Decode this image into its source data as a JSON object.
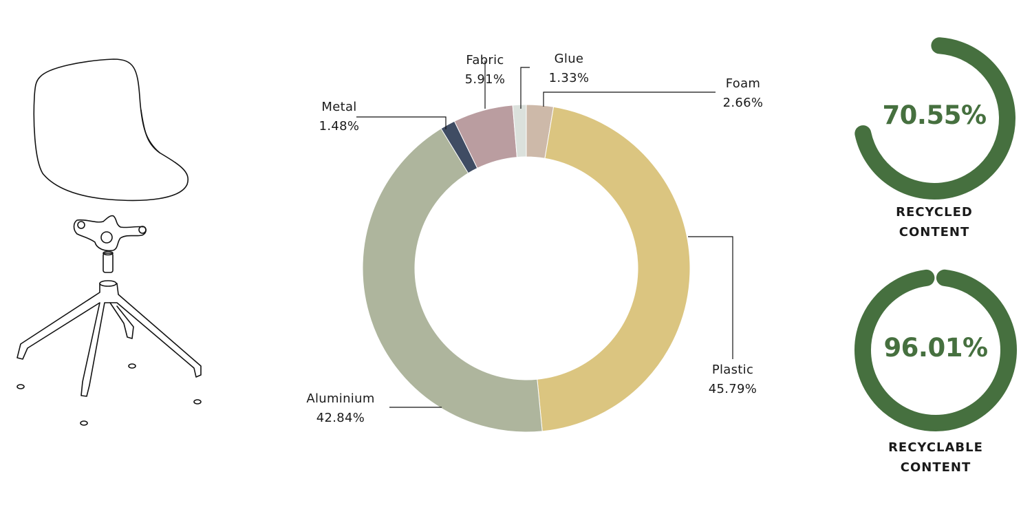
{
  "chart_data": [
    {
      "type": "pie",
      "variant": "donut",
      "slices": [
        {
          "label": "Foam",
          "value": 2.66,
          "display": "2.66%",
          "color": "#cdb9a9"
        },
        {
          "label": "Plastic",
          "value": 45.79,
          "display": "45.79%",
          "color": "#dbc580"
        },
        {
          "label": "Aluminium",
          "value": 42.84,
          "display": "42.84%",
          "color": "#aeb59d"
        },
        {
          "label": "Metal",
          "value": 1.48,
          "display": "1.48%",
          "color": "#3f4c63"
        },
        {
          "label": "Fabric",
          "value": 5.91,
          "display": "5.91%",
          "color": "#ba9da0"
        },
        {
          "label": "Glue",
          "value": 1.33,
          "display": "1.33%",
          "color": "#dbe1dc"
        }
      ]
    },
    {
      "type": "gauge",
      "value": 70.55,
      "display": "70.55%",
      "caption_line1": "RECYCLED",
      "caption_line2": "CONTENT",
      "color": "#46703f"
    },
    {
      "type": "gauge",
      "value": 96.01,
      "display": "96.01%",
      "caption_line1": "RECYCLABLE",
      "caption_line2": "CONTENT",
      "color": "#46703f"
    }
  ],
  "illustration": {
    "icon": "office-chair-exploded-icon"
  }
}
